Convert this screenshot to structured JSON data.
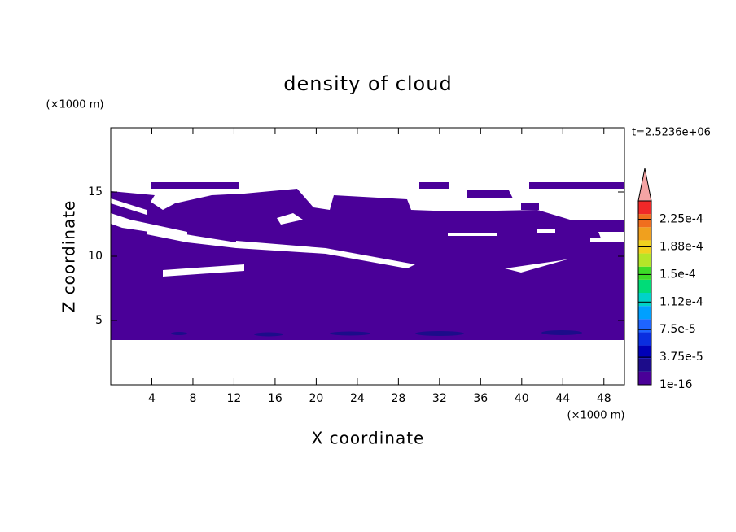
{
  "chart_data": {
    "type": "contour",
    "title": "density of cloud",
    "xlabel": "X coordinate",
    "ylabel": "Z coordinate",
    "x_unit": "(×1000 m)",
    "y_unit": "(×1000 m)",
    "annotation": "t=2.5236e+06",
    "xlim": [
      0,
      50
    ],
    "ylim": [
      0,
      20
    ],
    "xticks": [
      4,
      8,
      12,
      16,
      20,
      24,
      28,
      32,
      36,
      40,
      44,
      48
    ],
    "yticks": [
      5,
      10,
      15
    ],
    "colorbar": {
      "clim": [
        0,
        0.00025
      ],
      "ticks": [
        1e-16,
        {
          "value": 3.75e-05,
          "label": "3.75e-5"
        },
        {
          "value": 7.5e-05,
          "label": "7.5e-5"
        },
        {
          "value": 0.0001125,
          "label": "1.12e-4"
        },
        {
          "value": 0.00015,
          "label": "1.5e-4"
        },
        {
          "value": 0.0001875,
          "label": "1.88e-4"
        },
        {
          "value": 0.000225,
          "label": "2.25e-4"
        }
      ],
      "colors": [
        "#4a0098",
        "#1c0c8a",
        "#0000b8",
        "#0a2ee0",
        "#1e64ff",
        "#00a0ff",
        "#00d2c8",
        "#00dc78",
        "#3cdc28",
        "#b4e628",
        "#f0d21e",
        "#f0a01e",
        "#f06e1e",
        "#f02828"
      ],
      "extend_color": "#f4a4a4"
    }
  }
}
